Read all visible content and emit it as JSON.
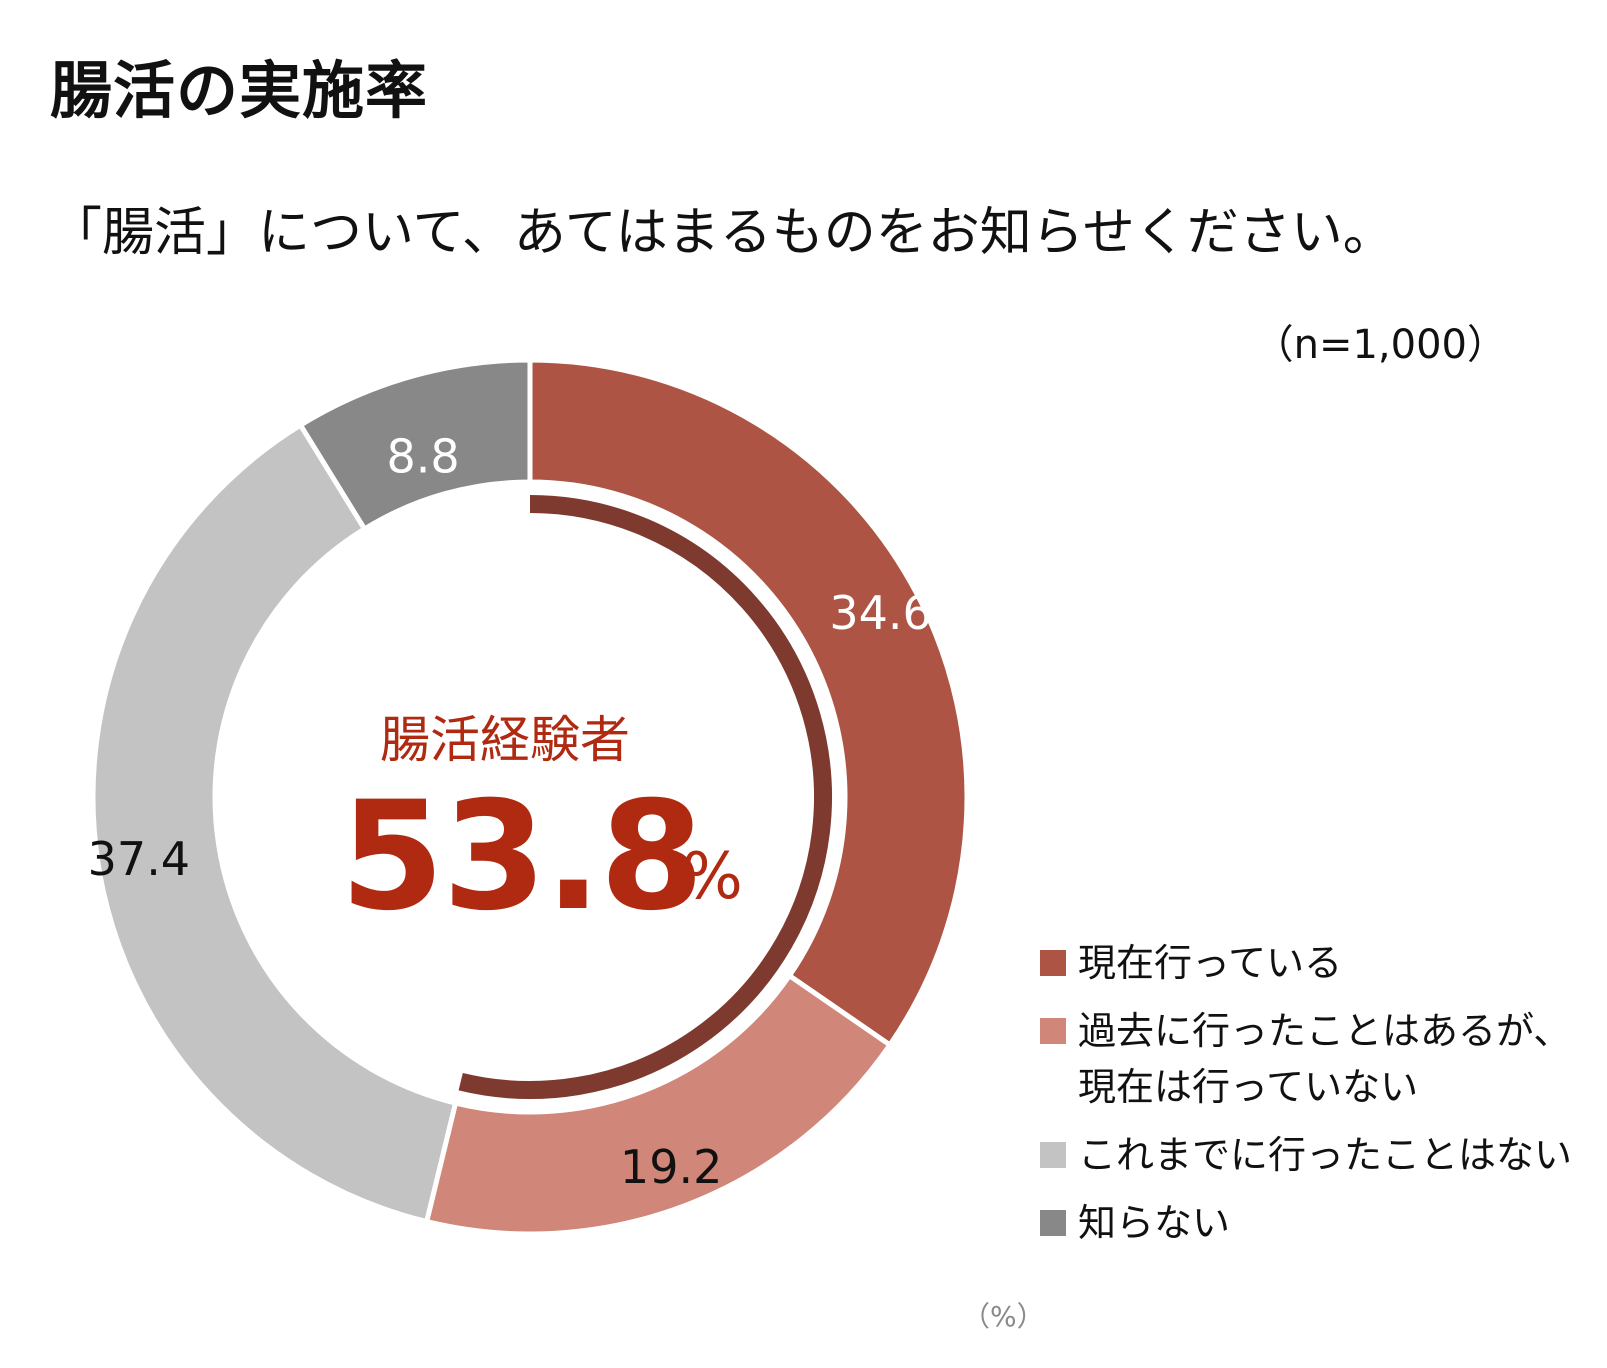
{
  "title": "腸活の実施率",
  "question": "「腸活」について、あてはまるものをお知らせください。",
  "sample_size": "（n=1,000）",
  "unit_note": "（%）",
  "center": {
    "label": "腸活経験者",
    "value": "53.8",
    "percent": "%"
  },
  "colors": {
    "current": "#ad5444",
    "past": "#d08678",
    "never": "#c3c3c3",
    "unknown": "#888888",
    "experience_arc": "#7e3a2e",
    "center_text": "#b02a12"
  },
  "chart_data": {
    "type": "pie",
    "variant": "donut",
    "unit": "%",
    "categories": [
      "現在行っている",
      "過去に行ったことはあるが、\n現在は行っていない",
      "これまでに行ったことはない",
      "知らない"
    ],
    "values": [
      34.6,
      19.2,
      37.4,
      8.8
    ],
    "value_labels": [
      "34.6",
      "19.2",
      "37.4",
      "8.8"
    ],
    "highlight_total": 53.8,
    "legend_position": "bottom-right"
  }
}
